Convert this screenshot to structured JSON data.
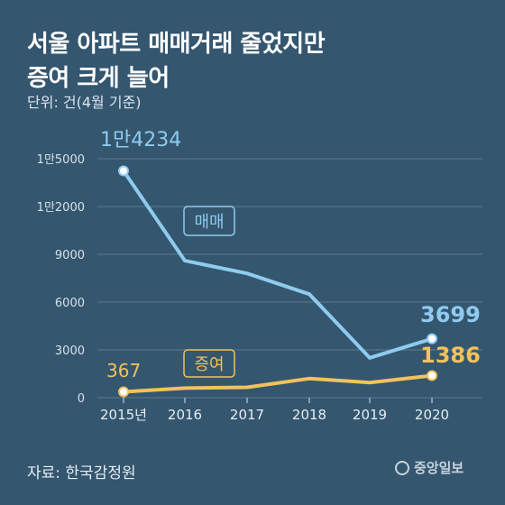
{
  "header": {
    "title_line1": "서울 아파트 매매거래 줄었지만",
    "title_line2": "증여 크게 늘어",
    "unit": "단위: 건(4월 기준)"
  },
  "footer": {
    "source": "자료: 한국감정원",
    "logo": "중앙일보"
  },
  "colors": {
    "background": "#34566f",
    "trade": "#8fcbef",
    "gift": "#f2c25a",
    "grid": "#5d7a8f"
  },
  "chart_data": {
    "type": "line",
    "categories": [
      "2015년",
      "2016",
      "2017",
      "2018",
      "2019",
      "2020"
    ],
    "ylim": [
      0,
      15000
    ],
    "yticks": [
      0,
      3000,
      6000,
      9000,
      12000,
      15000
    ],
    "ytick_labels": [
      "0",
      "3000",
      "6000",
      "9000",
      "1만2000",
      "1만5000"
    ],
    "grid": true,
    "series": [
      {
        "name": "매매",
        "color": "#8fcbef",
        "values": [
          14234,
          8600,
          7800,
          6500,
          2500,
          3699
        ],
        "endpoint_labels": {
          "first": "1만4234",
          "last": "3699"
        }
      },
      {
        "name": "증여",
        "color": "#f2c25a",
        "values": [
          367,
          600,
          650,
          1200,
          950,
          1386
        ],
        "endpoint_labels": {
          "first": "367",
          "last": "1386"
        }
      }
    ]
  }
}
